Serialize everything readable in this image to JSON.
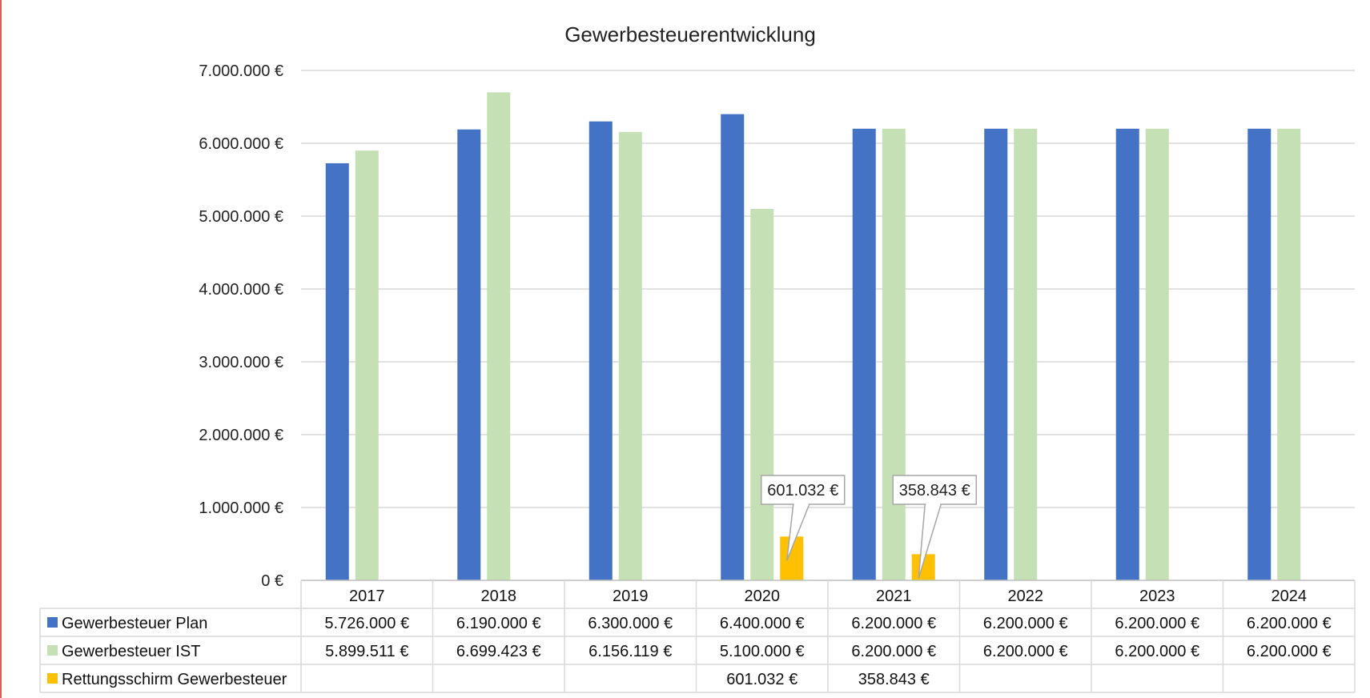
{
  "chart_data": {
    "type": "bar",
    "title": "Gewerbesteuerentwicklung",
    "categories": [
      "2017",
      "2018",
      "2019",
      "2020",
      "2021",
      "2022",
      "2023",
      "2024"
    ],
    "ylim": [
      0,
      7000000
    ],
    "yticks": [
      0,
      1000000,
      2000000,
      3000000,
      4000000,
      5000000,
      6000000,
      7000000
    ],
    "ytick_labels": [
      "0 €",
      "1.000.000 €",
      "2.000.000 €",
      "3.000.000 €",
      "4.000.000 €",
      "5.000.000 €",
      "6.000.000 €",
      "7.000.000 €"
    ],
    "grid": true,
    "legend": "data-table",
    "series": [
      {
        "name": "Gewerbesteuer Plan",
        "color": "#4472c4",
        "values": [
          5726000,
          6190000,
          6300000,
          6400000,
          6200000,
          6200000,
          6200000,
          6200000
        ],
        "labels": [
          "5.726.000 €",
          "6.190.000 €",
          "6.300.000 €",
          "6.400.000 €",
          "6.200.000 €",
          "6.200.000 €",
          "6.200.000 €",
          "6.200.000 €"
        ]
      },
      {
        "name": "Gewerbesteuer IST",
        "color": "#c5e0b4",
        "values": [
          5899511,
          6699423,
          6156119,
          5100000,
          6200000,
          6200000,
          6200000,
          6200000
        ],
        "labels": [
          "5.899.511 €",
          "6.699.423 €",
          "6.156.119 €",
          "5.100.000 €",
          "6.200.000 €",
          "6.200.000 €",
          "6.200.000 €",
          "6.200.000 €"
        ]
      },
      {
        "name": "Rettungsschirm Gewerbesteuer",
        "color": "#ffc000",
        "values": [
          null,
          null,
          null,
          601032,
          358843,
          null,
          null,
          null
        ],
        "labels": [
          "",
          "",
          "",
          "601.032 €",
          "358.843 €",
          "",
          "",
          ""
        ]
      }
    ],
    "annotations": [
      {
        "category": "2020",
        "series": "Rettungsschirm Gewerbesteuer",
        "text": "601.032 €"
      },
      {
        "category": "2021",
        "series": "Rettungsschirm Gewerbesteuer",
        "text": "358.843 €"
      }
    ]
  }
}
